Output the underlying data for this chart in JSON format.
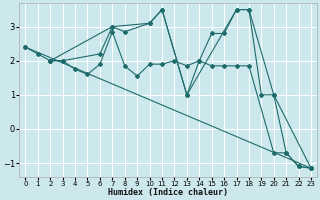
{
  "xlabel": "Humidex (Indice chaleur)",
  "background_color": "#cde8ec",
  "grid_color": "#ffffff",
  "line_color": "#1e6b6b",
  "xlim": [
    -0.5,
    23.5
  ],
  "ylim": [
    -1.4,
    3.7
  ],
  "yticks": [
    -1,
    0,
    1,
    2,
    3
  ],
  "xticks": [
    0,
    1,
    2,
    3,
    4,
    5,
    6,
    7,
    8,
    9,
    10,
    11,
    12,
    13,
    14,
    15,
    16,
    17,
    18,
    19,
    20,
    21,
    22,
    23
  ],
  "series": [
    {
      "x": [
        0,
        1,
        2,
        3,
        6,
        7,
        8,
        10,
        11,
        13,
        14,
        15,
        16,
        17,
        18,
        19,
        20,
        21,
        22,
        23
      ],
      "y": [
        2.4,
        2.2,
        2.0,
        2.0,
        2.2,
        3.0,
        2.85,
        3.1,
        3.5,
        1.0,
        2.0,
        2.8,
        2.8,
        3.5,
        3.5,
        1.0,
        1.0,
        -0.7,
        -1.1,
        -1.15
      ]
    },
    {
      "x": [
        0,
        23
      ],
      "y": [
        2.4,
        -1.15
      ]
    },
    {
      "x": [
        2,
        3,
        4,
        5,
        6,
        7,
        8,
        9,
        10,
        11,
        12,
        13,
        14,
        15,
        16,
        17,
        18,
        20,
        21,
        22,
        23
      ],
      "y": [
        2.0,
        2.0,
        1.75,
        1.6,
        1.9,
        2.85,
        1.85,
        1.55,
        1.9,
        1.9,
        2.0,
        1.85,
        2.0,
        1.85,
        1.85,
        1.85,
        1.85,
        -0.7,
        -0.7,
        -1.1,
        -1.15
      ]
    },
    {
      "x": [
        2,
        7,
        10,
        11,
        13,
        17,
        18,
        20,
        23
      ],
      "y": [
        2.0,
        3.0,
        3.1,
        3.5,
        1.0,
        3.5,
        3.5,
        1.0,
        -1.15
      ]
    }
  ]
}
